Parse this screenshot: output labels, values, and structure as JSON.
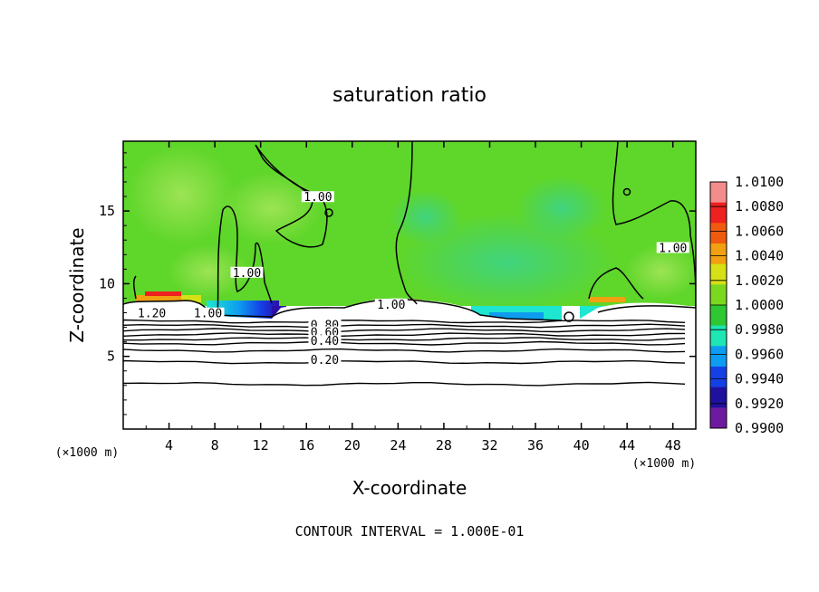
{
  "chart_data": {
    "type": "heatmap",
    "title": "saturation ratio",
    "xlabel": "X-coordinate",
    "ylabel": "Z-coordinate",
    "x_unit": "(×1000 m)",
    "z_unit": "(×1000 m)",
    "xlim": [
      0,
      50
    ],
    "ylim": [
      0,
      19.8
    ],
    "x_ticks": [
      4,
      8,
      12,
      16,
      20,
      24,
      28,
      32,
      36,
      40,
      44,
      48
    ],
    "y_ticks": [
      5,
      10,
      15
    ],
    "footer": "CONTOUR INTERVAL = 1.000E-01",
    "colorbar": {
      "labels": [
        "1.0100",
        "1.0080",
        "1.0060",
        "1.0040",
        "1.0020",
        "1.0000",
        "0.9980",
        "0.9960",
        "0.9940",
        "0.9920",
        "0.9900"
      ],
      "colors": [
        "#f58c8c",
        "#ee2020",
        "#f05a10",
        "#f0a010",
        "#d6e016",
        "#7ad81e",
        "#2ec832",
        "#1ee6b4",
        "#0e9cf0",
        "#1440e6",
        "#20109e",
        "#6e1aa0"
      ]
    },
    "contour_labels": [
      {
        "text": "1.00",
        "x": 7.4,
        "z": 7.8
      },
      {
        "text": "1.20",
        "x": 2.5,
        "z": 7.8
      },
      {
        "text": "1.00",
        "x": 10.8,
        "z": 10.6
      },
      {
        "text": "1.00",
        "x": 17.0,
        "z": 15.8
      },
      {
        "text": "1.00",
        "x": 23.4,
        "z": 8.4
      },
      {
        "text": "1.00",
        "x": 48.0,
        "z": 12.3
      },
      {
        "text": "0.80",
        "x": 17.6,
        "z": 7.0
      },
      {
        "text": "0.60",
        "x": 17.6,
        "z": 6.5
      },
      {
        "text": "0.40",
        "x": 17.6,
        "z": 5.9
      },
      {
        "text": "0.20",
        "x": 17.6,
        "z": 4.6
      }
    ],
    "horizontal_contours_z": [
      3.1,
      4.6,
      5.4,
      5.9,
      6.2,
      6.5,
      6.8,
      7.1,
      7.4
    ]
  }
}
